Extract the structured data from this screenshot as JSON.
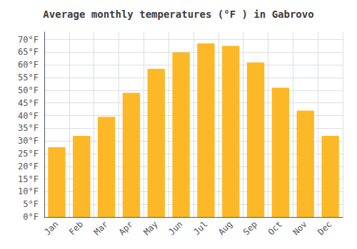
{
  "chart_data": {
    "type": "bar",
    "title": "Average monthly temperatures (°F ) in Gabrovo",
    "categories": [
      "Jan",
      "Feb",
      "Mar",
      "Apr",
      "May",
      "Jun",
      "Jul",
      "Aug",
      "Sep",
      "Oct",
      "Nov",
      "Dec"
    ],
    "values": [
      27.5,
      32.0,
      39.5,
      49.0,
      58.5,
      65.0,
      68.5,
      67.5,
      61.0,
      51.0,
      42.0,
      32.0
    ],
    "color": "#FDB827",
    "ylim": [
      0,
      73
    ],
    "yticks": [
      {
        "value": 0,
        "label": "0°F"
      },
      {
        "value": 5,
        "label": "5°F"
      },
      {
        "value": 10,
        "label": "10°F"
      },
      {
        "value": 15,
        "label": "15°F"
      },
      {
        "value": 20,
        "label": "20°F"
      },
      {
        "value": 25,
        "label": "25°F"
      },
      {
        "value": 30,
        "label": "30°F"
      },
      {
        "value": 35,
        "label": "35°F"
      },
      {
        "value": 40,
        "label": "40°F"
      },
      {
        "value": 45,
        "label": "45°F"
      },
      {
        "value": 50,
        "label": "50°F"
      },
      {
        "value": 55,
        "label": "55°F"
      },
      {
        "value": 60,
        "label": "60°F"
      },
      {
        "value": 65,
        "label": "65°F"
      },
      {
        "value": 70,
        "label": "70°F"
      }
    ],
    "grid": true
  }
}
